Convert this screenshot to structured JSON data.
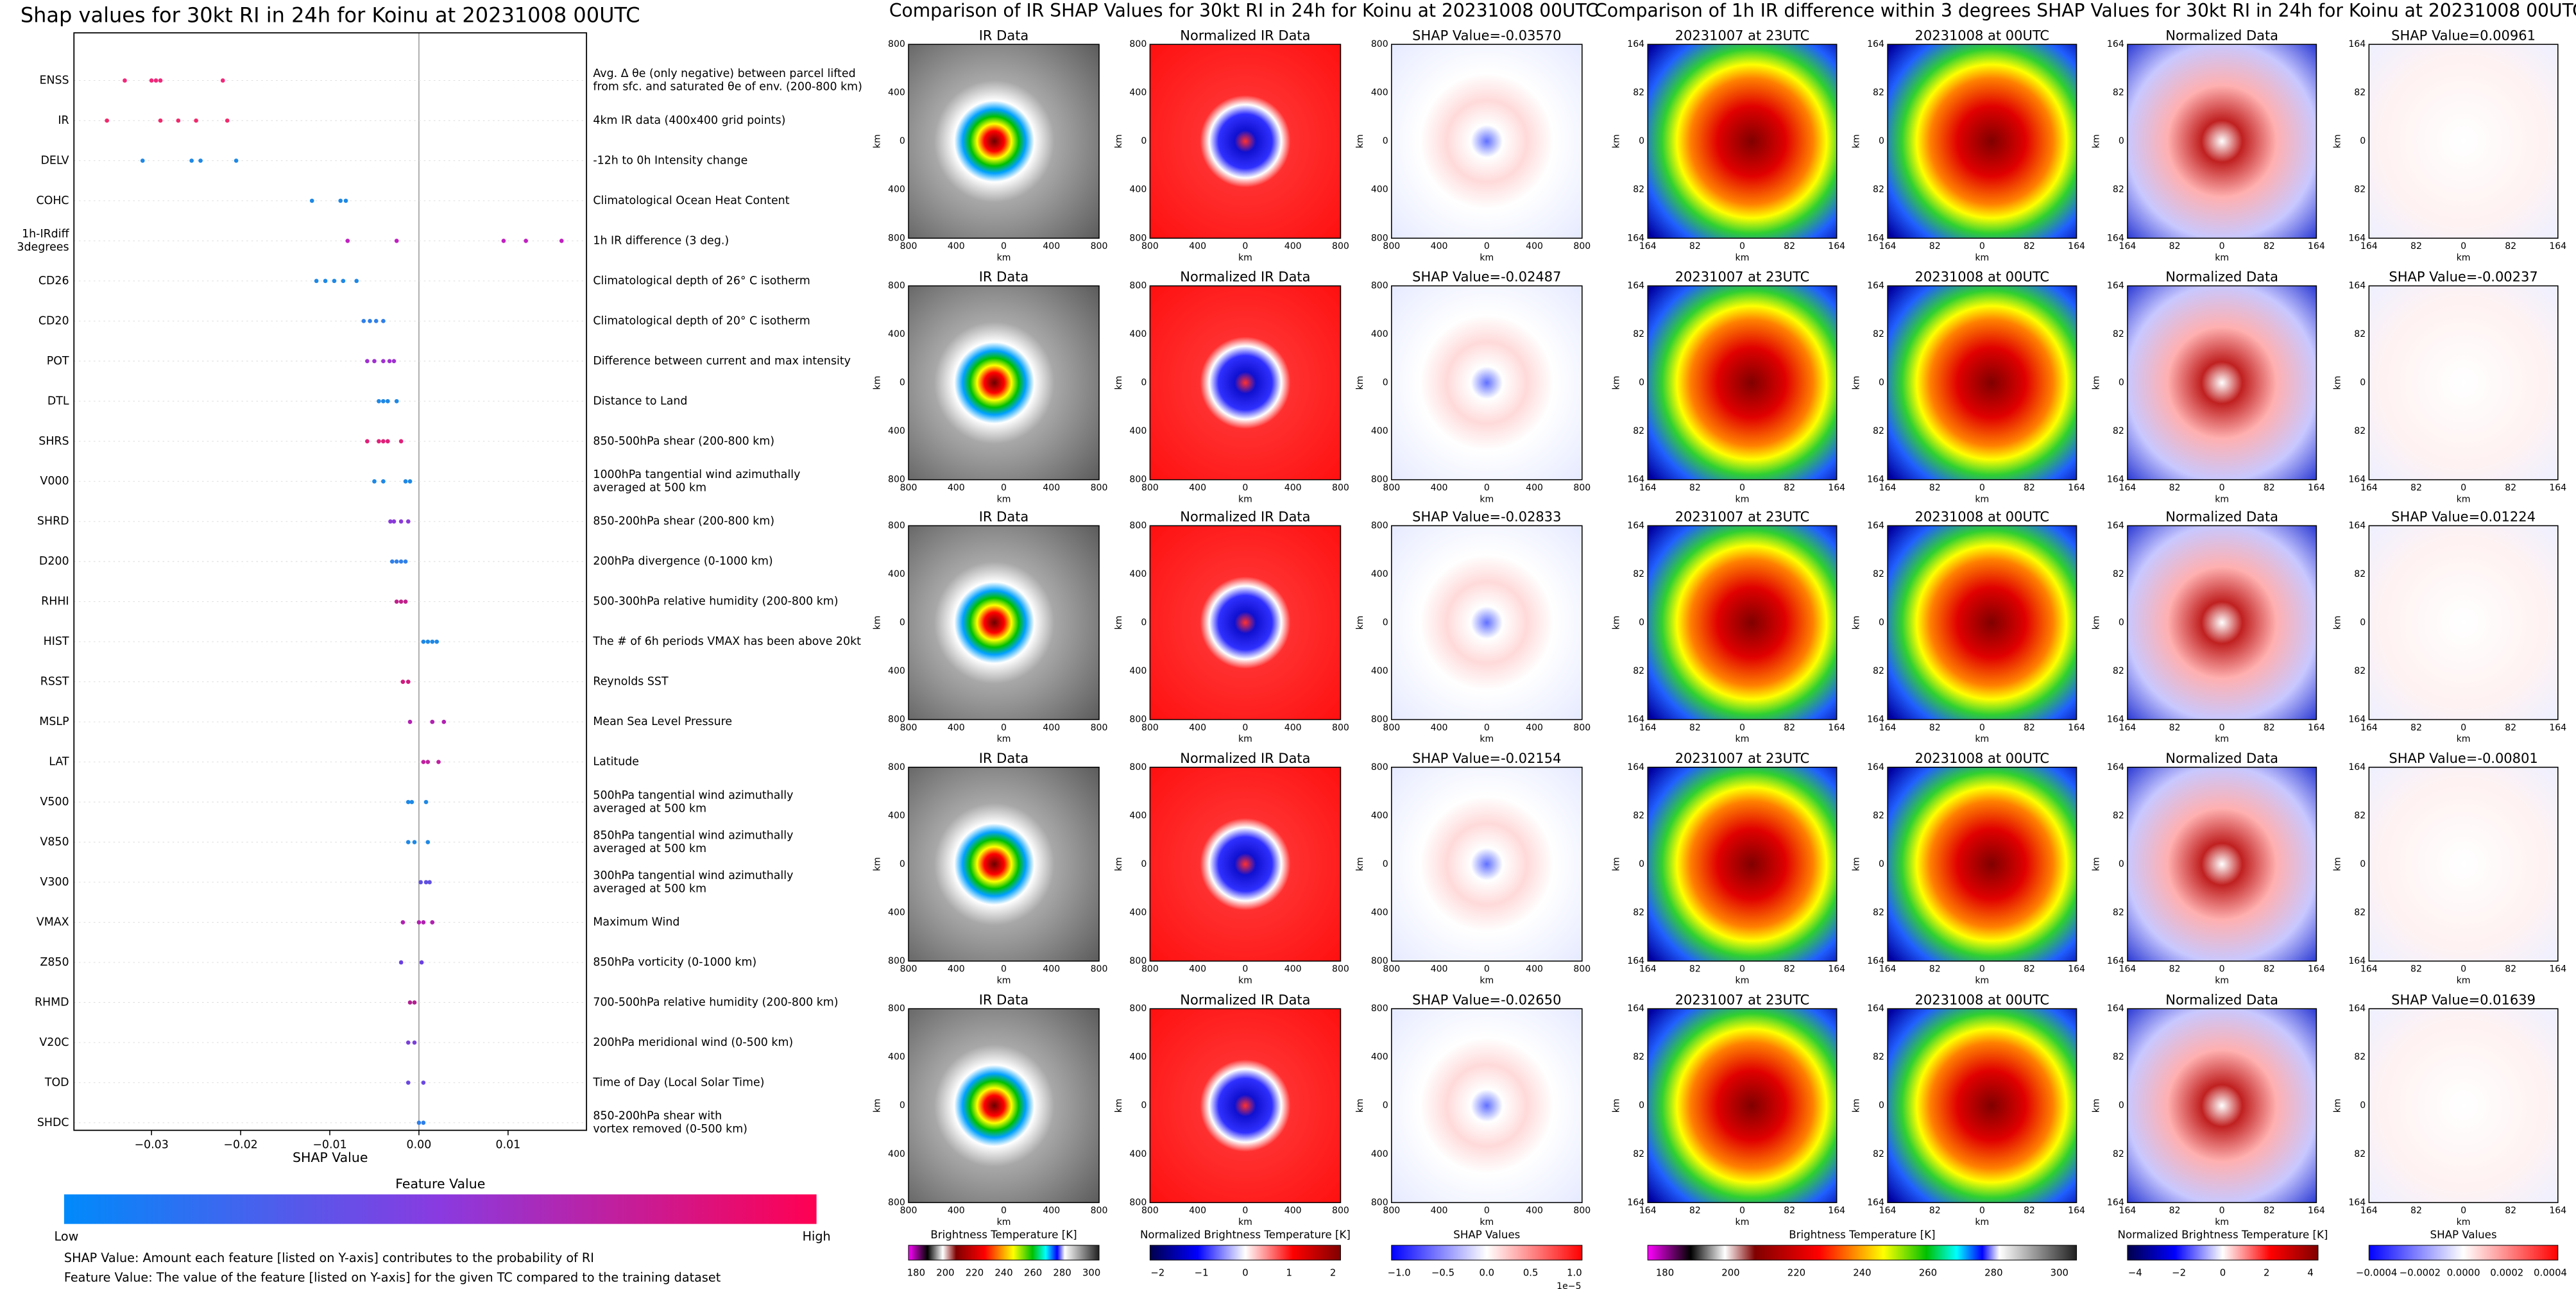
{
  "chart_data": {
    "type": "beeswarm",
    "title": "Shap values for 30kt RI in 24h for Koinu at 20231008 00UTC",
    "xlabel": "SHAP Value",
    "xlim": [
      -0.0387,
      0.0188
    ],
    "xticks": [
      {
        "value": -0.03,
        "label": "−0.03"
      },
      {
        "value": -0.02,
        "label": "−0.02"
      },
      {
        "value": -0.01,
        "label": "−0.01"
      },
      {
        "value": 0,
        "label": "0.00"
      },
      {
        "value": 0.01,
        "label": "0.01"
      }
    ],
    "series": [
      {
        "name": "ENSS",
        "description": [
          "Avg. Δ θe (only negative) between parcel lifted",
          "from sfc. and saturated θe of env. (200-800 km)"
        ],
        "color": "#f0287a",
        "values": [
          -0.033,
          -0.03,
          -0.0295,
          -0.029,
          -0.022
        ]
      },
      {
        "name": "IR",
        "description": [
          "4km IR data (400x400 grid points)"
        ],
        "color": "#f02a6c",
        "values": [
          -0.035,
          -0.029,
          -0.027,
          -0.025,
          -0.0215
        ]
      },
      {
        "name": "DELV",
        "description": [
          "-12h to 0h Intensity change"
        ],
        "color": "#1e88e5",
        "values": [
          -0.031,
          -0.0255,
          -0.0245,
          -0.0205
        ]
      },
      {
        "name": "COHC",
        "description": [
          "Climatological Ocean Heat Content"
        ],
        "color": "#1e88e5",
        "values": [
          -0.012,
          -0.0088,
          -0.0082
        ]
      },
      {
        "name": [
          "1h-IRdiff",
          "3degrees"
        ],
        "description": [
          "1h IR difference (3 deg.)"
        ],
        "color": "#c020c0",
        "values": [
          -0.008,
          -0.0025,
          0.0095,
          0.012,
          0.016
        ]
      },
      {
        "name": "CD26",
        "description": [
          "Climatological depth of 26° C isotherm"
        ],
        "color": "#1e88e5",
        "values": [
          -0.0115,
          -0.0105,
          -0.0095,
          -0.0085,
          -0.007
        ]
      },
      {
        "name": "CD20",
        "description": [
          "Climatological depth of 20° C isotherm"
        ],
        "color": "#2f7fe8",
        "values": [
          -0.0062,
          -0.0055,
          -0.0048,
          -0.004
        ]
      },
      {
        "name": "POT",
        "description": [
          "Difference between current and max intensity"
        ],
        "color": "#a030d0",
        "values": [
          -0.0058,
          -0.005,
          -0.004,
          -0.0033,
          -0.0028
        ]
      },
      {
        "name": "DTL",
        "description": [
          "Distance to Land"
        ],
        "color": "#1e88e5",
        "values": [
          -0.0045,
          -0.004,
          -0.0035,
          -0.0025
        ]
      },
      {
        "name": "SHRS",
        "description": [
          "850-500hPa shear (200-800 km)"
        ],
        "color": "#e0207a",
        "values": [
          -0.0058,
          -0.0045,
          -0.004,
          -0.0035,
          -0.002
        ]
      },
      {
        "name": "V000",
        "description": [
          "1000hPa tangential wind azimuthally",
          "averaged at 500 km"
        ],
        "color": "#1e88e5",
        "values": [
          -0.005,
          -0.004,
          -0.0015,
          -0.001
        ]
      },
      {
        "name": "SHRD",
        "description": [
          "850-200hPa shear (200-800 km)"
        ],
        "color": "#8a3ad8",
        "values": [
          -0.0032,
          -0.0028,
          -0.002,
          -0.0012
        ]
      },
      {
        "name": "D200",
        "description": [
          "200hPa divergence (0-1000 km)"
        ],
        "color": "#3080e8",
        "values": [
          -0.003,
          -0.0025,
          -0.002,
          -0.0015
        ]
      },
      {
        "name": "RHHI",
        "description": [
          "500-300hPa relative humidity (200-800 km)"
        ],
        "color": "#c0208a",
        "values": [
          -0.0025,
          -0.002,
          -0.0015
        ]
      },
      {
        "name": "HIST",
        "description": [
          "The # of 6h periods VMAX has been above 20kt"
        ],
        "color": "#1e88e5",
        "values": [
          0.0005,
          0.001,
          0.0015,
          0.002
        ]
      },
      {
        "name": "RSST",
        "description": [
          "Reynolds SST"
        ],
        "color": "#d01a80",
        "values": [
          -0.0018,
          -0.0012
        ]
      },
      {
        "name": "MSLP",
        "description": [
          "Mean Sea Level Pressure"
        ],
        "color": "#b020b0",
        "values": [
          -0.001,
          0.0015,
          0.0028
        ]
      },
      {
        "name": "LAT",
        "description": [
          "Latitude"
        ],
        "color": "#c020a0",
        "values": [
          0.0005,
          0.001,
          0.0022
        ]
      },
      {
        "name": "V500",
        "description": [
          "500hPa tangential wind azimuthally",
          "averaged at 500 km"
        ],
        "color": "#1e88e5",
        "values": [
          -0.0012,
          -0.0008,
          0.0008
        ]
      },
      {
        "name": "V850",
        "description": [
          "850hPa tangential wind azimuthally",
          "averaged at 500 km"
        ],
        "color": "#1e88e5",
        "values": [
          -0.0012,
          -0.0005,
          0.001
        ]
      },
      {
        "name": "V300",
        "description": [
          "300hPa tangential wind azimuthally",
          "averaged at 500 km"
        ],
        "color": "#6050e0",
        "values": [
          0.0002,
          0.0008,
          0.0012
        ]
      },
      {
        "name": "VMAX",
        "description": [
          "Maximum Wind"
        ],
        "color": "#b020b0",
        "values": [
          -0.0018,
          0,
          0.0005,
          0.0015
        ]
      },
      {
        "name": "Z850",
        "description": [
          "850hPa vorticity (0-1000 km)"
        ],
        "color": "#6a40e0",
        "values": [
          -0.002,
          0.0003
        ]
      },
      {
        "name": "RHMD",
        "description": [
          "700-500hPa relative humidity (200-800 km)"
        ],
        "color": "#b02090",
        "values": [
          -0.001,
          -0.0005
        ]
      },
      {
        "name": "V20C",
        "description": [
          "200hPa meridional wind (0-500 km)"
        ],
        "color": "#7a40d8",
        "values": [
          -0.0012,
          -0.0005
        ]
      },
      {
        "name": "TOD",
        "description": [
          "Time of Day (Local Solar Time)"
        ],
        "color": "#6a48e0",
        "values": [
          -0.0012,
          0.0005
        ]
      },
      {
        "name": "SHDC",
        "description": [
          "850-200hPa shear with",
          "vortex removed (0-500 km)"
        ],
        "color": "#2f7fe8",
        "values": [
          0,
          0.0005
        ]
      }
    ],
    "colorbar": {
      "title": "Feature Value",
      "low": "Low",
      "high": "High"
    },
    "notes": [
      "SHAP Value: Amount each feature [listed on Y-axis] contributes to the probability of RI",
      "Feature Value: The value of the feature [listed on Y-axis] for the given TC compared to the training dataset"
    ]
  },
  "ir_comparison": {
    "title": "Comparison of IR SHAP Values for 30kt RI in 24h for Koinu at 20231008 00UTC",
    "axis_label": "km",
    "ticks": [
      "800",
      "400",
      "0",
      "400",
      "800"
    ],
    "rows": [
      [
        "IR Data",
        "Normalized IR Data",
        "SHAP Value=-0.03570"
      ],
      [
        "IR Data",
        "Normalized IR Data",
        "SHAP Value=-0.02487"
      ],
      [
        "IR Data",
        "Normalized IR Data",
        "SHAP Value=-0.02833"
      ],
      [
        "IR Data",
        "Normalized IR Data",
        "SHAP Value=-0.02154"
      ],
      [
        "IR Data",
        "Normalized IR Data",
        "SHAP Value=-0.02650"
      ]
    ],
    "colorbars": [
      {
        "label": "Brightness Temperature [K]",
        "ticks": [
          "180",
          "200",
          "220",
          "240",
          "260",
          "280",
          "300"
        ]
      },
      {
        "label": "Normalized Brightness Temperature [K]",
        "ticks": [
          "−2",
          "−1",
          "0",
          "1",
          "2"
        ]
      },
      {
        "label": "SHAP Values",
        "ticks": [
          "−1.0",
          "−0.5",
          "0.0",
          "0.5",
          "1.0"
        ],
        "offset": "1e−5"
      }
    ]
  },
  "diff_comparison": {
    "title": "Comparison of 1h IR difference within 3 degrees SHAP Values for 30kt RI in 24h for Koinu at 20231008 00UTC",
    "axis_label": "km",
    "ticks": [
      "164",
      "82",
      "0",
      "82",
      "164"
    ],
    "rows": [
      [
        "20231007 at 23UTC",
        "20231008 at 00UTC",
        "Normalized Data",
        "SHAP Value=0.00961"
      ],
      [
        "20231007 at 23UTC",
        "20231008 at 00UTC",
        "Normalized Data",
        "SHAP Value=-0.00237"
      ],
      [
        "20231007 at 23UTC",
        "20231008 at 00UTC",
        "Normalized Data",
        "SHAP Value=0.01224"
      ],
      [
        "20231007 at 23UTC",
        "20231008 at 00UTC",
        "Normalized Data",
        "SHAP Value=-0.00801"
      ],
      [
        "20231007 at 23UTC",
        "20231008 at 00UTC",
        "Normalized Data",
        "SHAP Value=0.01639"
      ]
    ],
    "colorbars": [
      {
        "label": "Brightness Temperature [K]",
        "ticks": [
          "180",
          "200",
          "220",
          "240",
          "260",
          "280",
          "300"
        ]
      },
      {
        "label": "Normalized Brightness Temperature [K]",
        "ticks": [
          "−4",
          "−2",
          "0",
          "2",
          "4"
        ]
      },
      {
        "label": "SHAP Values",
        "ticks": [
          "−0.0004",
          "−0.0002",
          "0.0000",
          "0.0002",
          "0.0004"
        ]
      }
    ]
  }
}
